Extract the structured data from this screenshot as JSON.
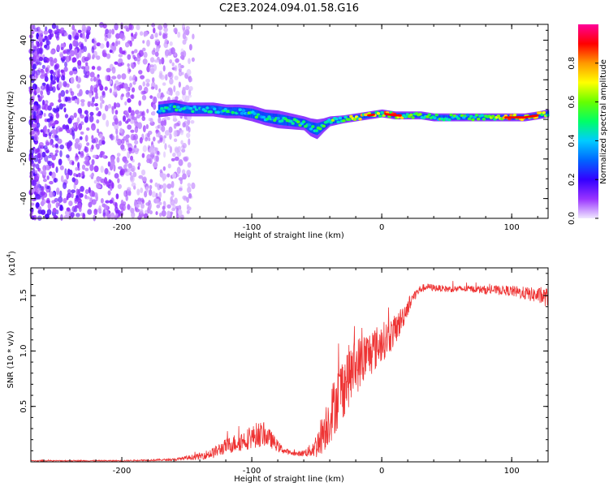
{
  "figure": {
    "title": "C2E3.2024.094.01.58.G16"
  },
  "chart_data": [
    {
      "type": "heatmap",
      "title": "C2E3.2024.094.01.58.G16",
      "xlabel": "Height of straight line (km)",
      "ylabel": "Frequency (Hz)",
      "xlim": [
        -270,
        128
      ],
      "ylim": [
        -50,
        48
      ],
      "x_ticks": [
        -200,
        -100,
        0,
        100
      ],
      "y_ticks": [
        40,
        20,
        0,
        -20,
        -40
      ],
      "colorbar": {
        "label": "Normalized spectral amplitude",
        "range": [
          0.0,
          1.0
        ],
        "ticks": [
          "0.0",
          "0.2",
          "0.4",
          "0.6",
          "0.8"
        ],
        "colors": [
          "#f0e8ff",
          "#9933ff",
          "#3300ff",
          "#0066ff",
          "#00ccff",
          "#00ff66",
          "#66ff00",
          "#ffff00",
          "#ff9900",
          "#ff0000",
          "#ff0099"
        ]
      },
      "noise_region": {
        "x_from": -270,
        "x_to": -145,
        "amplitude": 0.15
      },
      "ridge": {
        "x": [
          -172,
          -160,
          -150,
          -140,
          -130,
          -120,
          -110,
          -100,
          -90,
          -80,
          -70,
          -60,
          -55,
          -50,
          -45,
          -40,
          -30,
          -20,
          -10,
          0,
          10,
          20,
          30,
          40,
          50,
          60,
          70,
          80,
          90,
          100,
          110,
          120,
          128
        ],
        "frequency": [
          5,
          6,
          5,
          5,
          5,
          4,
          4,
          3,
          1,
          0,
          -1,
          -2,
          -4,
          -5,
          -3,
          -1,
          0,
          1,
          2,
          3,
          2,
          2,
          2,
          1,
          1,
          1,
          1,
          1,
          1,
          1,
          1,
          2,
          3
        ],
        "amplitude": [
          0.4,
          0.5,
          0.5,
          0.45,
          0.5,
          0.5,
          0.45,
          0.55,
          0.5,
          0.5,
          0.55,
          0.6,
          0.55,
          0.5,
          0.55,
          0.6,
          0.7,
          0.75,
          0.8,
          0.75,
          0.85,
          0.7,
          0.65,
          0.6,
          0.55,
          0.55,
          0.55,
          0.6,
          0.7,
          0.85,
          0.85,
          0.8,
          0.75
        ],
        "width_hz": [
          8,
          8,
          7,
          7,
          7,
          7,
          7,
          8,
          8,
          9,
          8,
          7,
          9,
          10,
          7,
          5,
          4,
          4,
          4,
          4,
          4,
          4,
          4,
          4,
          4,
          4,
          4,
          4,
          4,
          4,
          4,
          4,
          4
        ]
      }
    },
    {
      "type": "line",
      "xlabel": "Height of straight line (km)",
      "ylabel": "SNR (10 * v/v)",
      "y_multiplier": "(x10",
      "y_multiplier_exp": "4",
      "y_multiplier_close": ")",
      "xlim": [
        -270,
        128
      ],
      "ylim": [
        0,
        1.75
      ],
      "x_ticks": [
        -200,
        -100,
        0,
        100
      ],
      "y_ticks": [
        0.5,
        1.0,
        1.5
      ],
      "y_tick_labels": [
        "0.5",
        "1.0",
        "1.5"
      ],
      "series": [
        {
          "color": "#ee3333",
          "x": [
            -270,
            -200,
            -160,
            -140,
            -130,
            -120,
            -110,
            -100,
            -95,
            -90,
            -85,
            -80,
            -75,
            -70,
            -65,
            -60,
            -55,
            -50,
            -45,
            -40,
            -35,
            -30,
            -25,
            -20,
            -15,
            -10,
            -5,
            0,
            5,
            10,
            15,
            20,
            25,
            30,
            35,
            40,
            50,
            60,
            70,
            80,
            90,
            100,
            110,
            120,
            128
          ],
          "values": [
            0.01,
            0.01,
            0.02,
            0.05,
            0.08,
            0.14,
            0.18,
            0.22,
            0.25,
            0.24,
            0.2,
            0.14,
            0.1,
            0.08,
            0.07,
            0.08,
            0.1,
            0.15,
            0.28,
            0.4,
            0.55,
            0.68,
            0.78,
            0.86,
            0.92,
            0.97,
            1.02,
            1.08,
            1.12,
            1.18,
            1.28,
            1.4,
            1.5,
            1.56,
            1.58,
            1.57,
            1.56,
            1.56,
            1.56,
            1.55,
            1.55,
            1.54,
            1.52,
            1.5,
            1.48
          ],
          "noise": [
            0.005,
            0.005,
            0.01,
            0.03,
            0.05,
            0.07,
            0.09,
            0.1,
            0.12,
            0.1,
            0.08,
            0.05,
            0.03,
            0.02,
            0.02,
            0.03,
            0.06,
            0.12,
            0.2,
            0.24,
            0.28,
            0.3,
            0.28,
            0.26,
            0.24,
            0.22,
            0.2,
            0.18,
            0.16,
            0.14,
            0.12,
            0.08,
            0.05,
            0.04,
            0.03,
            0.03,
            0.03,
            0.03,
            0.03,
            0.04,
            0.04,
            0.05,
            0.06,
            0.07,
            0.09
          ]
        }
      ]
    }
  ]
}
